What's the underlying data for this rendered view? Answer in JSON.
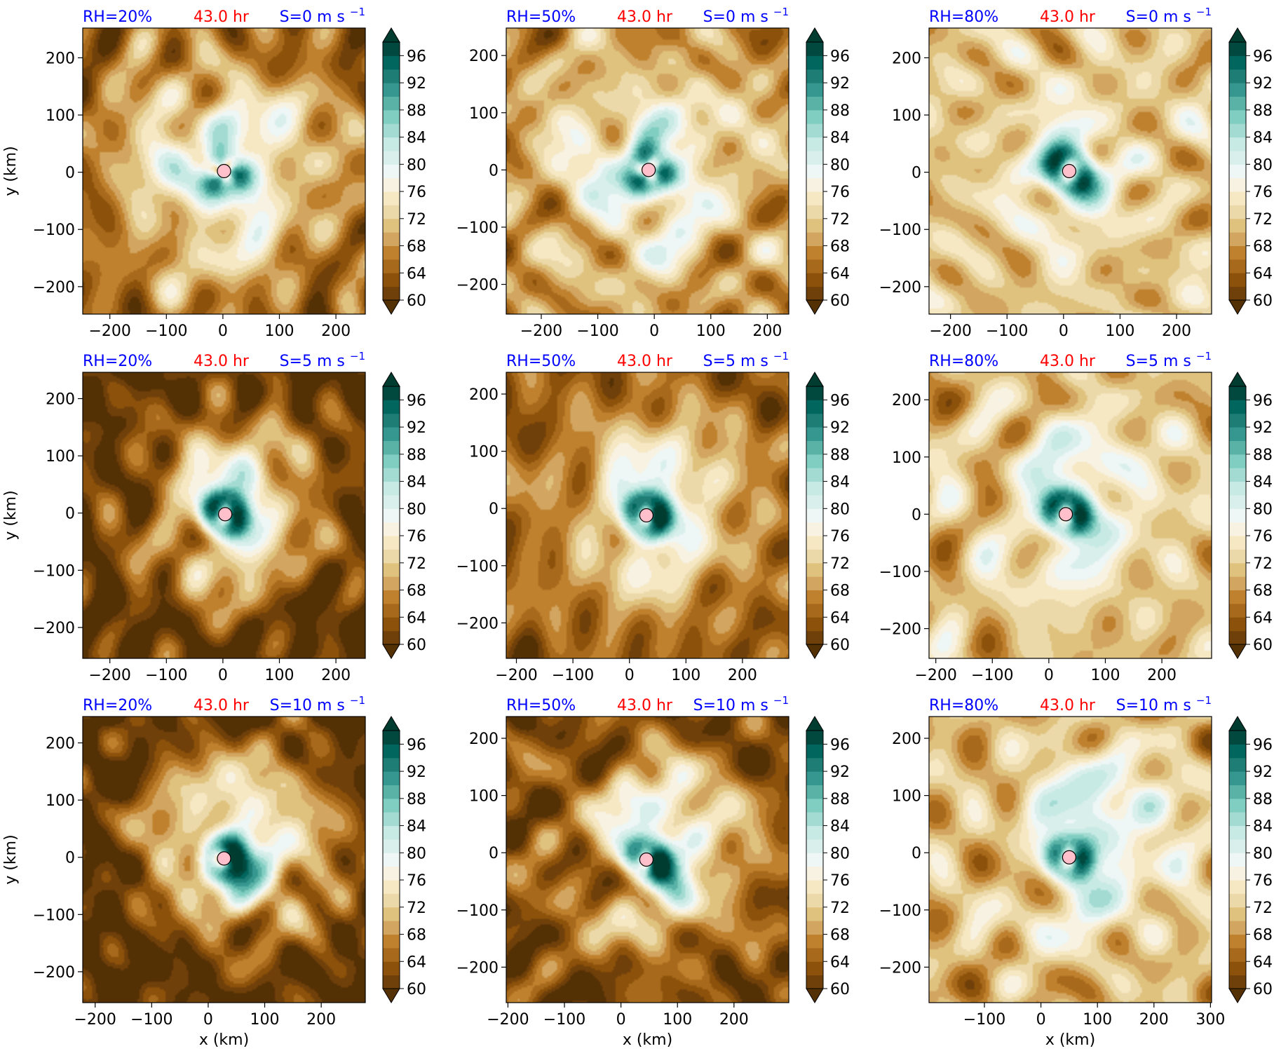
{
  "figure": {
    "title": ""
  },
  "colorbar": {
    "ticks": [
      "60",
      "64",
      "68",
      "72",
      "76",
      "80",
      "84",
      "88",
      "92",
      "96"
    ],
    "levels": [
      60,
      62,
      64,
      66,
      68,
      70,
      72,
      74,
      76,
      78,
      80,
      82,
      84,
      86,
      88,
      90,
      92,
      94,
      96,
      98
    ],
    "extend": "both",
    "colormap": "BrBG",
    "colors": [
      "#543005",
      "#70400a",
      "#8c510a",
      "#a7691b",
      "#bf812d",
      "#d2a561",
      "#dfc27d",
      "#ecd9a9",
      "#f6e8c3",
      "#f8f2e3",
      "#eef7f5",
      "#d9efeb",
      "#c7eae5",
      "#a3dbd2",
      "#80cdc1",
      "#5ab2a7",
      "#35978f",
      "#1e7d75",
      "#01665e",
      "#01493f",
      "#003c30"
    ]
  },
  "center_marker": {
    "fill": "#ffc0cb",
    "stroke": "#000000"
  },
  "label_colors": {
    "rh": "#0000ff",
    "time": "#ff0000",
    "shear": "#0000ff"
  },
  "chart_data": [
    {
      "type": "heatmap",
      "row": 0,
      "col": 0,
      "rh_label": "RH=20%",
      "time_label": "43.0 hr",
      "shear_label": "S=0 m s",
      "shear_exp": "−1",
      "xlabel": "",
      "ylabel": "y (km)",
      "xlim": [
        -248,
        252
      ],
      "ylim": [
        -248,
        252
      ],
      "xticks": [
        -200,
        -100,
        0,
        100,
        200
      ],
      "yticks": [
        -200,
        -100,
        0,
        100,
        200
      ],
      "xtick_labels": [
        "−200",
        "−100",
        "0",
        "100",
        "200"
      ],
      "ytick_labels": [
        "−200",
        "−100",
        "0",
        "100",
        "200"
      ],
      "center": [
        2,
        2
      ],
      "pattern": {
        "core": 0.5,
        "radius": 200,
        "arms": 3,
        "shear_dir": 0,
        "dryness": 0.75,
        "amp": 0.45,
        "seed": 11
      }
    },
    {
      "type": "heatmap",
      "row": 0,
      "col": 1,
      "rh_label": "RH=50%",
      "time_label": "43.0 hr",
      "shear_label": "S=0 m s",
      "shear_exp": "−1",
      "xlabel": "",
      "ylabel": "",
      "xlim": [
        -262,
        238
      ],
      "ylim": [
        -252,
        248
      ],
      "xticks": [
        -200,
        -100,
        0,
        100,
        200
      ],
      "yticks": [
        -200,
        -100,
        0,
        100,
        200
      ],
      "xtick_labels": [
        "−200",
        "−100",
        "0",
        "100",
        "200"
      ],
      "ytick_labels": [
        "−200",
        "−100",
        "0",
        "100",
        "200"
      ],
      "center": [
        -10,
        0
      ],
      "pattern": {
        "core": 0.65,
        "radius": 180,
        "arms": 3,
        "shear_dir": 0,
        "dryness": 0.55,
        "amp": 0.4,
        "seed": 23
      }
    },
    {
      "type": "heatmap",
      "row": 0,
      "col": 2,
      "rh_label": "RH=80%",
      "time_label": "43.0 hr",
      "shear_label": "S=0 m s",
      "shear_exp": "−1",
      "xlabel": "",
      "ylabel": "",
      "xlim": [
        -238,
        262
      ],
      "ylim": [
        -248,
        252
      ],
      "xticks": [
        -200,
        -100,
        0,
        100,
        200
      ],
      "yticks": [
        -200,
        -100,
        0,
        100,
        200
      ],
      "xtick_labels": [
        "−200",
        "−100",
        "0",
        "100",
        "200"
      ],
      "ytick_labels": [
        "−200",
        "−100",
        "0",
        "100",
        "200"
      ],
      "center": [
        10,
        2
      ],
      "pattern": {
        "core": 0.85,
        "radius": 110,
        "arms": 2,
        "shear_dir": 0,
        "dryness": 0.35,
        "amp": 0.3,
        "seed": 37
      }
    },
    {
      "type": "heatmap",
      "row": 1,
      "col": 0,
      "rh_label": "RH=20%",
      "time_label": "43.0 hr",
      "shear_label": "S=5 m s",
      "shear_exp": "−1",
      "xlabel": "",
      "ylabel": "y (km)",
      "xlim": [
        -248,
        252
      ],
      "ylim": [
        -254,
        246
      ],
      "xticks": [
        -200,
        -100,
        0,
        100,
        200
      ],
      "yticks": [
        -200,
        -100,
        0,
        100,
        200
      ],
      "xtick_labels": [
        "−200",
        "−100",
        "0",
        "100",
        "200"
      ],
      "ytick_labels": [
        "−200",
        "−100",
        "0",
        "100",
        "200"
      ],
      "center": [
        4,
        -2
      ],
      "pattern": {
        "core": 0.8,
        "radius": 150,
        "arms": 2,
        "shear_dir": 0.5,
        "dryness": 0.9,
        "amp": 0.45,
        "seed": 41
      }
    },
    {
      "type": "heatmap",
      "row": 1,
      "col": 1,
      "rh_label": "RH=50%",
      "time_label": "43.0 hr",
      "shear_label": "S=5 m s",
      "shear_exp": "−1",
      "xlabel": "",
      "ylabel": "",
      "xlim": [
        -218,
        282
      ],
      "ylim": [
        -262,
        238
      ],
      "xticks": [
        -200,
        -100,
        0,
        100,
        200
      ],
      "yticks": [
        -200,
        -100,
        0,
        100,
        200
      ],
      "xtick_labels": [
        "−200",
        "−100",
        "0",
        "100",
        "200"
      ],
      "ytick_labels": [
        "−200",
        "−100",
        "0",
        "100",
        "200"
      ],
      "center": [
        30,
        -12
      ],
      "pattern": {
        "core": 0.8,
        "radius": 160,
        "arms": 2,
        "shear_dir": 0.4,
        "dryness": 0.7,
        "amp": 0.4,
        "seed": 53
      }
    },
    {
      "type": "heatmap",
      "row": 1,
      "col": 2,
      "rh_label": "RH=80%",
      "time_label": "43.0 hr",
      "shear_label": "S=5 m s",
      "shear_exp": "−1",
      "xlabel": "",
      "ylabel": "",
      "xlim": [
        -212,
        288
      ],
      "ylim": [
        -252,
        248
      ],
      "xticks": [
        -200,
        -100,
        0,
        100,
        200
      ],
      "yticks": [
        -200,
        -100,
        0,
        100,
        200
      ],
      "xtick_labels": [
        "−200",
        "−100",
        "0",
        "100",
        "200"
      ],
      "ytick_labels": [
        "−200",
        "−100",
        "0",
        "100",
        "200"
      ],
      "center": [
        30,
        0
      ],
      "pattern": {
        "core": 0.8,
        "radius": 160,
        "arms": 2,
        "shear_dir": 0.3,
        "dryness": 0.4,
        "amp": 0.38,
        "seed": 67
      }
    },
    {
      "type": "heatmap",
      "row": 2,
      "col": 0,
      "rh_label": "RH=20%",
      "time_label": "43.0 hr",
      "shear_label": "S=10 m s",
      "shear_exp": "−1",
      "xlabel": "x (km)",
      "ylabel": "y (km)",
      "xlim": [
        -222,
        278
      ],
      "ylim": [
        -254,
        246
      ],
      "xticks": [
        -200,
        -100,
        0,
        100,
        200
      ],
      "yticks": [
        -200,
        -100,
        0,
        100,
        200
      ],
      "xtick_labels": [
        "−200",
        "−100",
        "0",
        "100",
        "200"
      ],
      "ytick_labels": [
        "−200",
        "−100",
        "0",
        "100",
        "200"
      ],
      "center": [
        28,
        -2
      ],
      "pattern": {
        "core": 0.7,
        "radius": 170,
        "arms": 1,
        "shear_dir": 1.0,
        "dryness": 0.95,
        "amp": 0.5,
        "seed": 71
      }
    },
    {
      "type": "heatmap",
      "row": 2,
      "col": 1,
      "rh_label": "RH=50%",
      "time_label": "43.0 hr",
      "shear_label": "S=10 m s",
      "shear_exp": "−1",
      "xlabel": "x (km)",
      "ylabel": "",
      "xlim": [
        -203,
        297
      ],
      "ylim": [
        -262,
        238
      ],
      "xticks": [
        -200,
        -100,
        0,
        100,
        200
      ],
      "yticks": [
        -200,
        -100,
        0,
        100,
        200
      ],
      "xtick_labels": [
        "−200",
        "−100",
        "0",
        "100",
        "200"
      ],
      "ytick_labels": [
        "−200",
        "−100",
        "0",
        "100",
        "200"
      ],
      "center": [
        45,
        -12
      ],
      "pattern": {
        "core": 0.6,
        "radius": 160,
        "arms": 2,
        "shear_dir": 0.8,
        "dryness": 0.8,
        "amp": 0.45,
        "seed": 83
      }
    },
    {
      "type": "heatmap",
      "row": 2,
      "col": 2,
      "rh_label": "RH=80%",
      "time_label": "43.0 hr",
      "shear_label": "S=10 m s",
      "shear_exp": "−1",
      "xlabel": "x (km)",
      "ylabel": "",
      "xlim": [
        -198,
        302
      ],
      "ylim": [
        -262,
        238
      ],
      "xticks": [
        -100,
        0,
        100,
        200,
        300
      ],
      "yticks": [
        -200,
        -100,
        0,
        100,
        200
      ],
      "xtick_labels": [
        "−100",
        "0",
        "100",
        "200",
        "300"
      ],
      "ytick_labels": [
        "−200",
        "−100",
        "0",
        "100",
        "200"
      ],
      "center": [
        50,
        -8
      ],
      "pattern": {
        "core": 0.65,
        "radius": 190,
        "arms": 2,
        "shear_dir": 0.6,
        "dryness": 0.45,
        "amp": 0.42,
        "seed": 97
      }
    }
  ]
}
